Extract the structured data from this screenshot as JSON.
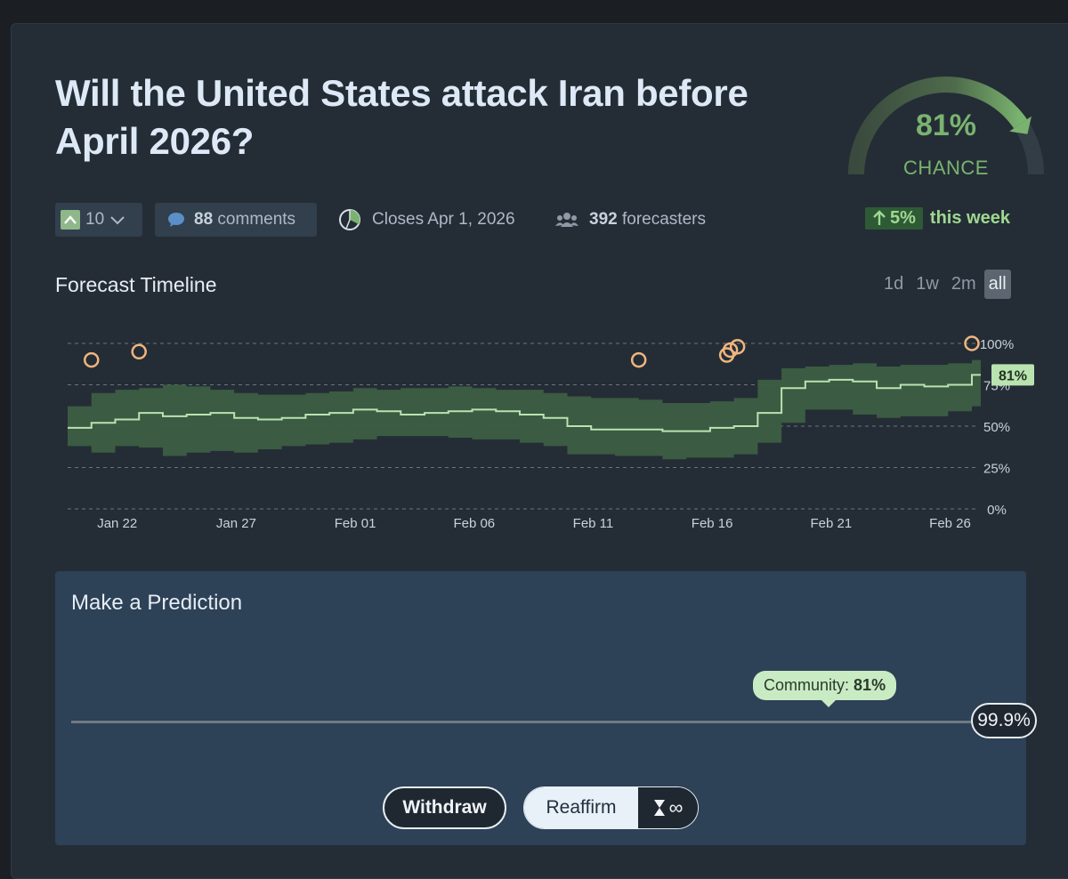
{
  "question": {
    "title": "Will the United States attack Iran before April 2026?"
  },
  "gauge": {
    "value_label": "81%",
    "value": 0.81,
    "caption": "CHANCE",
    "color": "#7ab36f"
  },
  "weekly_change": {
    "value": "5%",
    "label": "this week"
  },
  "meta": {
    "votes": "10",
    "comments_count": "88",
    "comments_label": "comments",
    "closes": "Closes Apr 1, 2026",
    "forecasters_count": "392",
    "forecasters_label": "forecasters"
  },
  "timeline": {
    "title": "Forecast Timeline",
    "ranges": [
      "1d",
      "1w",
      "2m",
      "all"
    ],
    "active_range": "all"
  },
  "chart_data": {
    "type": "line",
    "x_tick_labels": [
      "Jan 22",
      "Jan 27",
      "Feb 01",
      "Feb 06",
      "Feb 11",
      "Feb 16",
      "Feb 21",
      "Feb 26"
    ],
    "y_tick_labels": [
      "100%",
      "75%",
      "50%",
      "25%",
      "0%"
    ],
    "ylim": [
      0,
      100
    ],
    "x_start": "2026-01-21",
    "x_end": "2026-02-28",
    "current_label": "81%",
    "line_color": "#b9e3b0",
    "band_color": "#3d5e43",
    "series": [
      {
        "x": [
          "2026-01-21",
          "2026-01-22",
          "2026-01-23",
          "2026-01-24",
          "2026-01-25",
          "2026-01-26",
          "2026-01-27",
          "2026-01-28",
          "2026-01-29",
          "2026-01-30",
          "2026-01-31",
          "2026-02-01",
          "2026-02-02",
          "2026-02-03",
          "2026-02-04",
          "2026-02-05",
          "2026-02-06",
          "2026-02-07",
          "2026-02-08",
          "2026-02-09",
          "2026-02-10",
          "2026-02-11",
          "2026-02-12",
          "2026-02-13",
          "2026-02-14",
          "2026-02-15",
          "2026-02-16",
          "2026-02-17",
          "2026-02-18",
          "2026-02-19",
          "2026-02-20",
          "2026-02-21",
          "2026-02-22",
          "2026-02-23",
          "2026-02-24",
          "2026-02-25",
          "2026-02-26",
          "2026-02-27",
          "2026-02-28"
        ],
        "median": [
          49,
          52,
          54,
          58,
          56,
          57,
          58,
          55,
          54,
          55,
          57,
          58,
          60,
          59,
          57,
          58,
          59,
          60,
          59,
          57,
          55,
          50,
          48,
          48,
          48,
          47,
          47,
          49,
          50,
          58,
          73,
          77,
          78,
          77,
          73,
          75,
          74,
          75,
          81
        ],
        "lower": [
          38,
          34,
          38,
          37,
          32,
          34,
          35,
          34,
          36,
          38,
          39,
          40,
          42,
          44,
          44,
          44,
          43,
          42,
          42,
          40,
          38,
          33,
          33,
          32,
          32,
          30,
          31,
          31,
          33,
          40,
          52,
          60,
          60,
          57,
          55,
          56,
          56,
          59,
          62
        ],
        "upper": [
          62,
          70,
          72,
          73,
          75,
          74,
          72,
          70,
          69,
          69,
          70,
          71,
          73,
          72,
          73,
          73,
          74,
          73,
          72,
          72,
          70,
          68,
          67,
          67,
          66,
          64,
          64,
          65,
          67,
          78,
          85,
          86,
          87,
          88,
          86,
          87,
          87,
          88,
          90
        ]
      }
    ],
    "user_forecasts": [
      {
        "x": "2026-01-22",
        "y": 90
      },
      {
        "x": "2026-01-24",
        "y": 95
      },
      {
        "x": "2026-02-14",
        "y": 90
      },
      {
        "x": "2026-02-18",
        "y": 93
      },
      {
        "x": "2026-02-18",
        "y": 96
      },
      {
        "x": "2026-02-18",
        "y": 98
      },
      {
        "x": "2026-02-28",
        "y": 100
      }
    ],
    "point_color": "#f0b57e"
  },
  "prediction": {
    "title": "Make a Prediction",
    "community_label": "Community:",
    "community_value": "81%",
    "community_fraction": 0.81,
    "slider_value": "99.9%",
    "withdraw_label": "Withdraw",
    "reaffirm_label": "Reaffirm",
    "infinity_label": "∞"
  }
}
